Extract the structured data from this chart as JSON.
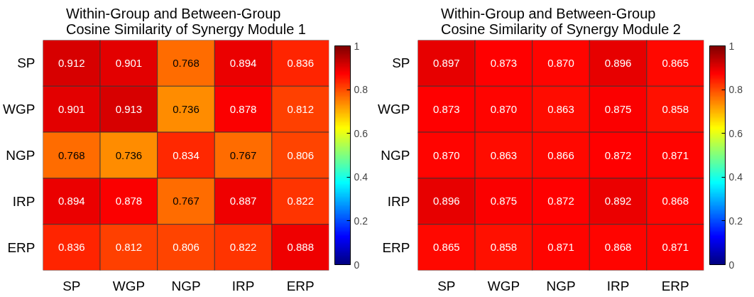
{
  "chart_data": [
    {
      "type": "heatmap",
      "title": "Within-Group and Between-Group\nCosine Similarity of Synergy Module 1",
      "categories": [
        "SP",
        "WGP",
        "NGP",
        "IRP",
        "ERP"
      ],
      "y_categories": [
        "SP",
        "WGP",
        "NGP",
        "IRP",
        "ERP"
      ],
      "cells": [
        [
          0.912,
          0.901,
          0.768,
          0.894,
          0.836
        ],
        [
          0.901,
          0.913,
          0.736,
          0.878,
          0.812
        ],
        [
          0.768,
          0.736,
          0.834,
          0.767,
          0.806
        ],
        [
          0.894,
          0.878,
          0.767,
          0.887,
          0.822
        ],
        [
          0.836,
          0.812,
          0.806,
          0.822,
          0.888
        ]
      ],
      "clim": [
        0,
        1
      ],
      "cticks": [
        0,
        0.2,
        0.4,
        0.6,
        0.8,
        1
      ],
      "data_labels": true
    },
    {
      "type": "heatmap",
      "title": "Within-Group and Between-Group\nCosine Similarity of Synergy Module 2",
      "categories": [
        "SP",
        "WGP",
        "NGP",
        "IRP",
        "ERP"
      ],
      "y_categories": [
        "SP",
        "WGP",
        "NGP",
        "IRP",
        "ERP"
      ],
      "cells": [
        [
          0.897,
          0.873,
          0.87,
          0.896,
          0.865
        ],
        [
          0.873,
          0.87,
          0.863,
          0.875,
          0.858
        ],
        [
          0.87,
          0.863,
          0.866,
          0.872,
          0.871
        ],
        [
          0.896,
          0.875,
          0.872,
          0.892,
          0.868
        ],
        [
          0.865,
          0.858,
          0.871,
          0.868,
          0.871
        ]
      ],
      "cell_labels": [
        [
          "0.897",
          "0.873",
          "0.870",
          "0.896",
          "0.865"
        ],
        [
          "0.873",
          "0.870",
          "0.863",
          "0.875",
          "0.858"
        ],
        [
          "0.870",
          "0.863",
          "0.866",
          "0.872",
          "0.871"
        ],
        [
          "0.896",
          "0.875",
          "0.872",
          "0.892",
          "0.868"
        ],
        [
          "0.865",
          "0.858",
          "0.871",
          "0.868",
          "0.871"
        ]
      ],
      "clim": [
        0,
        1
      ],
      "cticks": [
        0,
        0.2,
        0.4,
        0.6,
        0.8,
        1
      ],
      "data_labels": true
    }
  ]
}
